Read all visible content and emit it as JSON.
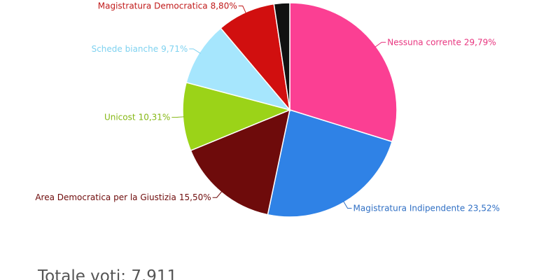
{
  "chart_data": {
    "type": "pie",
    "categories": [
      "Nessuna corrente",
      "Magistratura Indipendente",
      "Area Democratica per la Giustizia",
      "Unicost",
      "Schede bianche",
      "Magistratura Democratica",
      null
    ],
    "values": [
      29.79,
      23.52,
      15.5,
      10.31,
      9.71,
      8.8,
      2.37
    ],
    "value_labels": [
      "29,79%",
      "23,52%",
      "15,50%",
      "10,31%",
      "9,71%",
      "8,80%",
      null
    ],
    "colors": [
      "#fb3f93",
      "#2f82e6",
      "#6e0b0b",
      "#9bd318",
      "#a6e6fd",
      "#d10f0f",
      "#111111"
    ],
    "label_colors": [
      "#e8357f",
      "#2f6fc4",
      "#6e0b0b",
      "#86b816",
      "#7fd2f0",
      "#c01a1a",
      "#111111"
    ]
  },
  "footer": {
    "total": "Totale voti: 7.911"
  }
}
